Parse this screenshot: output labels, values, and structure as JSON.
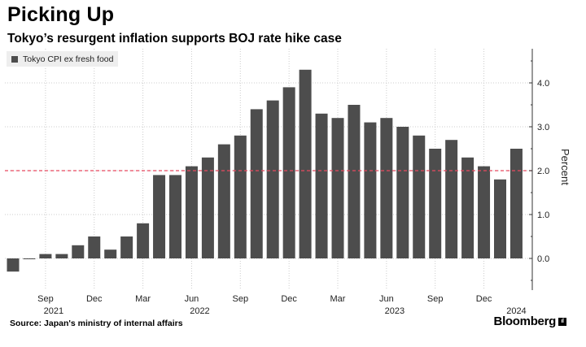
{
  "header": {
    "title": "Picking Up",
    "subtitle": "Tokyo’s resurgent inflation supports BOJ rate hike case"
  },
  "footer": {
    "source": "Source: Japan's ministry of internal affairs",
    "brand": "Bloomberg",
    "brand_mark": "ıl"
  },
  "colors": {
    "bar": "#4d4d4d",
    "reference_line": "#e8495f",
    "grid": "#cccccc",
    "axis": "#333333"
  },
  "chart_data": {
    "type": "bar",
    "title": "Picking Up",
    "subtitle": "Tokyo’s resurgent inflation supports BOJ rate hike case",
    "ylabel": "Percent",
    "ylim": [
      -0.75,
      4.75
    ],
    "yticks": [
      0,
      1,
      2,
      3,
      4
    ],
    "ytick_labels": [
      "0.0",
      "1.0",
      "2.0",
      "3.0",
      "4.0"
    ],
    "reference_line": {
      "y": 2.0,
      "style": "dashed"
    },
    "grid": "horizontal dotted",
    "legend": {
      "label": "Tokyo CPI ex fresh food",
      "position": "top-left"
    },
    "categories": [
      "2021-07",
      "2021-08",
      "2021-09",
      "2021-10",
      "2021-11",
      "2021-12",
      "2022-01",
      "2022-02",
      "2022-03",
      "2022-04",
      "2022-05",
      "2022-06",
      "2022-07",
      "2022-08",
      "2022-09",
      "2022-10",
      "2022-11",
      "2022-12",
      "2023-01",
      "2023-02",
      "2023-03",
      "2023-04",
      "2023-05",
      "2023-06",
      "2023-07",
      "2023-08",
      "2023-09",
      "2023-10",
      "2023-11",
      "2023-12",
      "2024-01",
      "2024-02"
    ],
    "series": [
      {
        "name": "Tokyo CPI ex fresh food",
        "values": [
          -0.3,
          0.0,
          0.1,
          0.1,
          0.3,
          0.5,
          0.2,
          0.5,
          0.8,
          1.9,
          1.9,
          2.1,
          2.3,
          2.6,
          2.8,
          3.4,
          3.6,
          3.9,
          4.3,
          3.3,
          3.2,
          3.5,
          3.1,
          3.2,
          3.0,
          2.8,
          2.5,
          2.7,
          2.3,
          2.1,
          1.8,
          2.5
        ]
      }
    ],
    "x_ticks": [
      {
        "index": 2,
        "label": "Sep",
        "year": "2021"
      },
      {
        "index": 5,
        "label": "Dec",
        "year": ""
      },
      {
        "index": 8,
        "label": "Mar",
        "year": ""
      },
      {
        "index": 11,
        "label": "Jun",
        "year": "2022"
      },
      {
        "index": 14,
        "label": "Sep",
        "year": ""
      },
      {
        "index": 17,
        "label": "Dec",
        "year": ""
      },
      {
        "index": 20,
        "label": "Mar",
        "year": ""
      },
      {
        "index": 23,
        "label": "Jun",
        "year": "2023"
      },
      {
        "index": 26,
        "label": "Sep",
        "year": ""
      },
      {
        "index": 29,
        "label": "Dec",
        "year": ""
      },
      {
        "index": 31,
        "label": "",
        "year": "2024"
      }
    ]
  }
}
